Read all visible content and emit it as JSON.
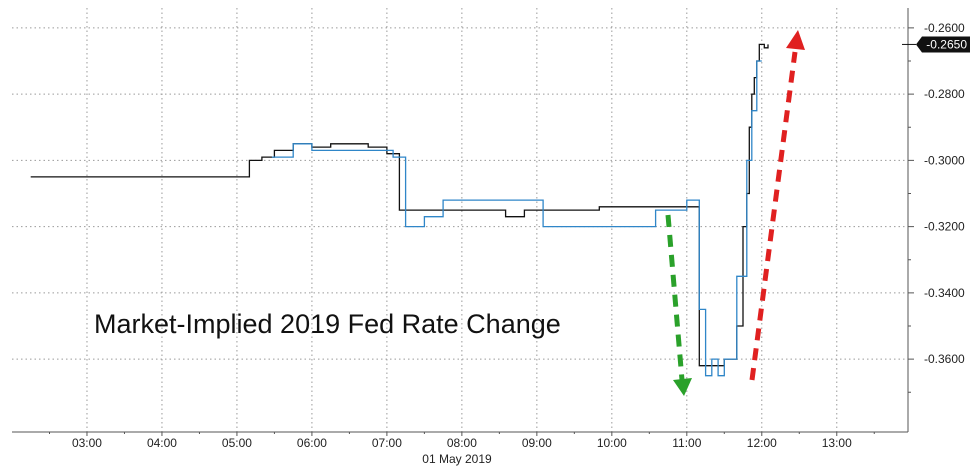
{
  "chart_data": {
    "type": "line",
    "title": "",
    "annotation": "Market-Implied 2019 Fed Rate Change",
    "xlabel": "01 May 2019",
    "ylabel": "",
    "x_ticks": [
      "03:00",
      "04:00",
      "05:00",
      "06:00",
      "07:00",
      "08:00",
      "09:00",
      "10:00",
      "11:00",
      "12:00",
      "13:00"
    ],
    "y_ticks": [
      "-0.2600",
      "-0.2800",
      "-0.3000",
      "-0.3200",
      "-0.3400",
      "-0.3600"
    ],
    "ylim": [
      -0.382,
      -0.254
    ],
    "last_value_label": "-0.2650",
    "grid": true,
    "series": [
      {
        "color": "#111111",
        "x": [
          "02:15",
          "02:45",
          "03:15",
          "03:45",
          "04:15",
          "04:45",
          "05:10",
          "05:20",
          "05:30",
          "05:45",
          "06:00",
          "06:15",
          "06:30",
          "06:45",
          "07:00",
          "07:10",
          "07:20",
          "07:35",
          "07:50",
          "08:05",
          "08:20",
          "08:35",
          "08:50",
          "09:05",
          "09:20",
          "09:35",
          "09:50",
          "10:05",
          "10:20",
          "10:35",
          "10:50",
          "11:00",
          "11:10",
          "11:20",
          "11:30",
          "11:40",
          "11:45",
          "11:48",
          "11:50",
          "11:52",
          "11:54",
          "11:56",
          "11:58",
          "12:02",
          "12:05"
        ],
        "y": [
          -0.305,
          -0.305,
          -0.305,
          -0.305,
          -0.305,
          -0.305,
          -0.3,
          -0.299,
          -0.297,
          -0.295,
          -0.296,
          -0.295,
          -0.295,
          -0.296,
          -0.298,
          -0.315,
          -0.315,
          -0.315,
          -0.315,
          -0.315,
          -0.315,
          -0.317,
          -0.315,
          -0.315,
          -0.315,
          -0.315,
          -0.314,
          -0.314,
          -0.314,
          -0.314,
          -0.314,
          -0.314,
          -0.362,
          -0.362,
          -0.36,
          -0.35,
          -0.32,
          -0.31,
          -0.29,
          -0.28,
          -0.275,
          -0.27,
          -0.265,
          -0.266,
          -0.265
        ]
      },
      {
        "color": "#2f86c8",
        "x": [
          "05:28",
          "05:45",
          "06:00",
          "07:05",
          "07:15",
          "07:30",
          "07:45",
          "08:00",
          "09:00",
          "09:05",
          "10:35",
          "10:55",
          "11:00",
          "11:10",
          "11:15",
          "11:20",
          "11:25",
          "11:30",
          "11:40",
          "11:48",
          "11:52",
          "11:56",
          "12:00"
        ],
        "y": [
          -0.299,
          -0.295,
          -0.297,
          -0.299,
          -0.32,
          -0.317,
          -0.312,
          -0.312,
          -0.312,
          -0.32,
          -0.315,
          -0.315,
          -0.312,
          -0.345,
          -0.365,
          -0.36,
          -0.365,
          -0.36,
          -0.335,
          -0.3,
          -0.285,
          -0.27,
          -0.27
        ]
      }
    ]
  }
}
